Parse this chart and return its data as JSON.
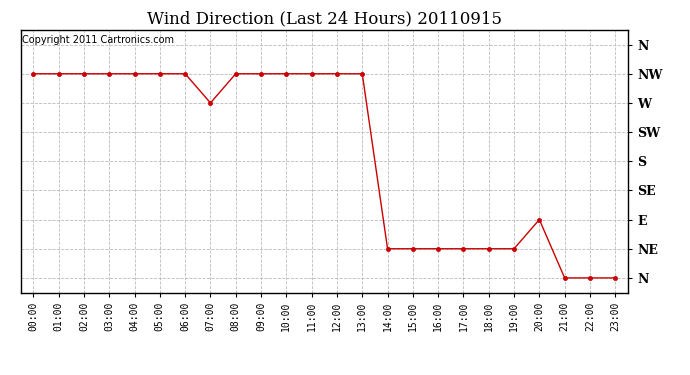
{
  "title": "Wind Direction (Last 24 Hours) 20110915",
  "copyright_text": "Copyright 2011 Cartronics.com",
  "x_labels": [
    "00:00",
    "01:00",
    "02:00",
    "03:00",
    "04:00",
    "05:00",
    "06:00",
    "07:00",
    "08:00",
    "09:00",
    "10:00",
    "11:00",
    "12:00",
    "13:00",
    "14:00",
    "15:00",
    "16:00",
    "17:00",
    "18:00",
    "19:00",
    "20:00",
    "21:00",
    "22:00",
    "23:00"
  ],
  "y_labels": [
    "N",
    "NW",
    "W",
    "SW",
    "S",
    "SE",
    "E",
    "NE",
    "N"
  ],
  "y_ticks": [
    8,
    7,
    6,
    5,
    4,
    3,
    2,
    1,
    0
  ],
  "data_hours": [
    0,
    1,
    2,
    3,
    4,
    5,
    6,
    7,
    8,
    9,
    10,
    11,
    12,
    13,
    14,
    15,
    16,
    17,
    18,
    19,
    20,
    21,
    22,
    23
  ],
  "data_dirs": [
    7,
    7,
    7,
    7,
    7,
    7,
    7,
    6,
    7,
    7,
    7,
    7,
    7,
    7,
    1,
    1,
    1,
    1,
    1,
    1,
    2,
    0,
    0,
    0
  ],
  "line_color": "#cc0000",
  "marker_color": "#cc0000",
  "bg_color": "#ffffff",
  "grid_color": "#bbbbbb",
  "title_fontsize": 12,
  "copyright_fontsize": 7,
  "ylabel_fontsize": 9,
  "xlabel_fontsize": 7
}
